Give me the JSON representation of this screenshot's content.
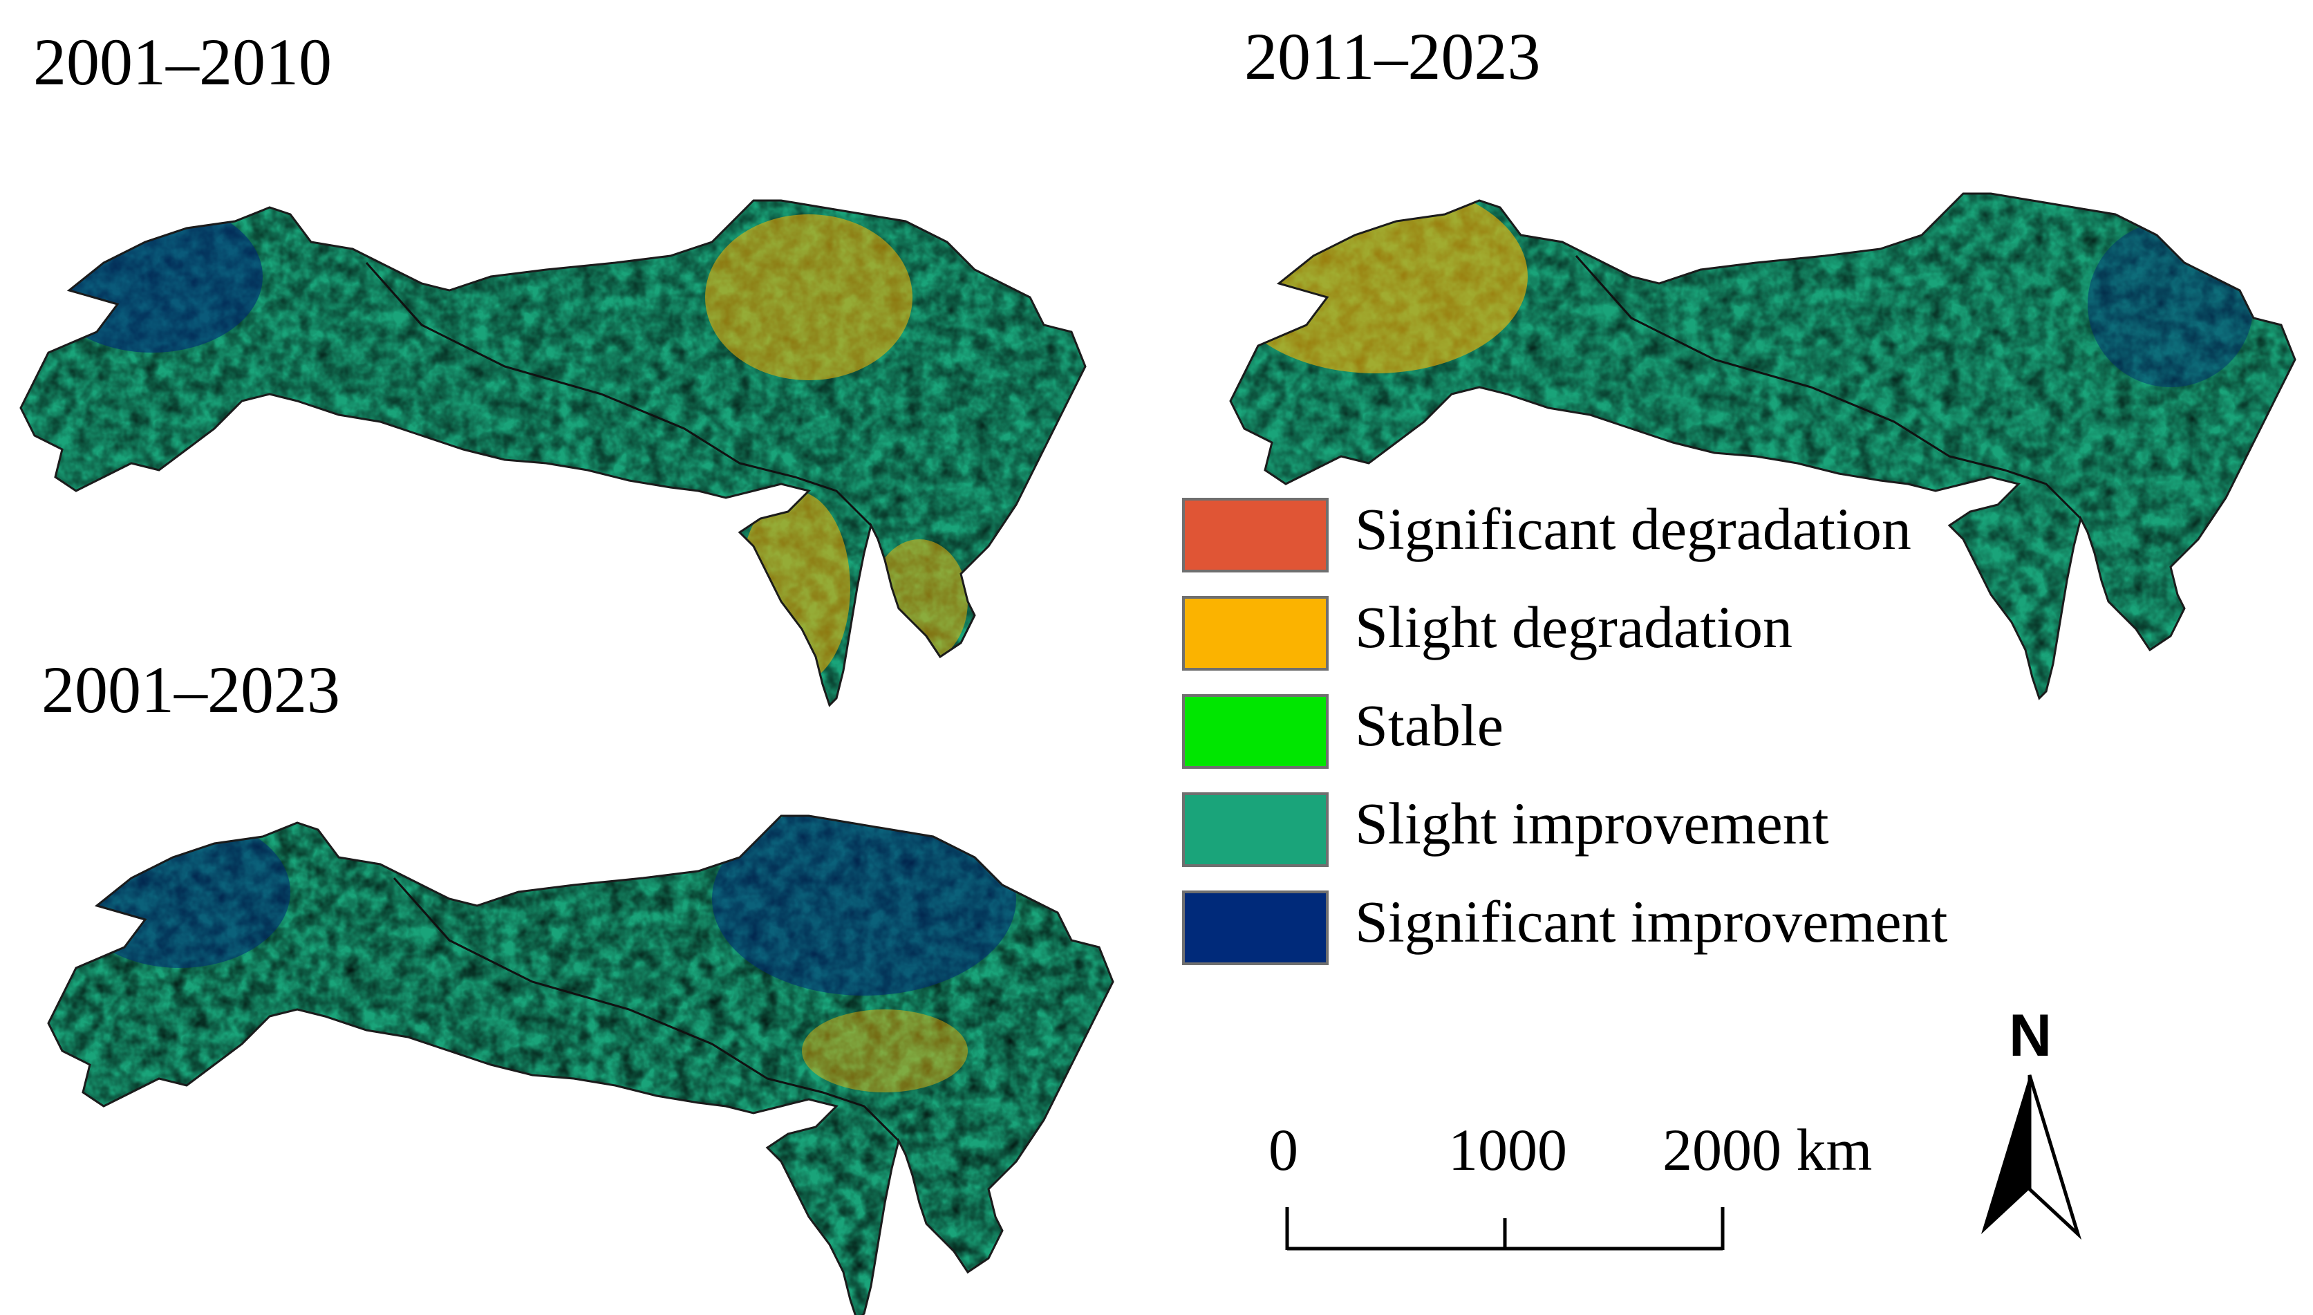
{
  "panels": [
    {
      "title": "2001–2010"
    },
    {
      "title": "2011–2023"
    },
    {
      "title": "2001–2023"
    }
  ],
  "legend": {
    "items": [
      {
        "label": "Significant degradation",
        "color": "#e05535"
      },
      {
        "label": "Slight degradation",
        "color": "#fbb300"
      },
      {
        "label": "Stable",
        "color": "#00e600"
      },
      {
        "label": "Slight improvement",
        "color": "#1aa47a"
      },
      {
        "label": "Significant improvement",
        "color": "#002a7a"
      }
    ]
  },
  "scale_bar": {
    "labels": [
      "0",
      "1000",
      "2000 km"
    ]
  },
  "north_arrow": {
    "label": "N"
  }
}
